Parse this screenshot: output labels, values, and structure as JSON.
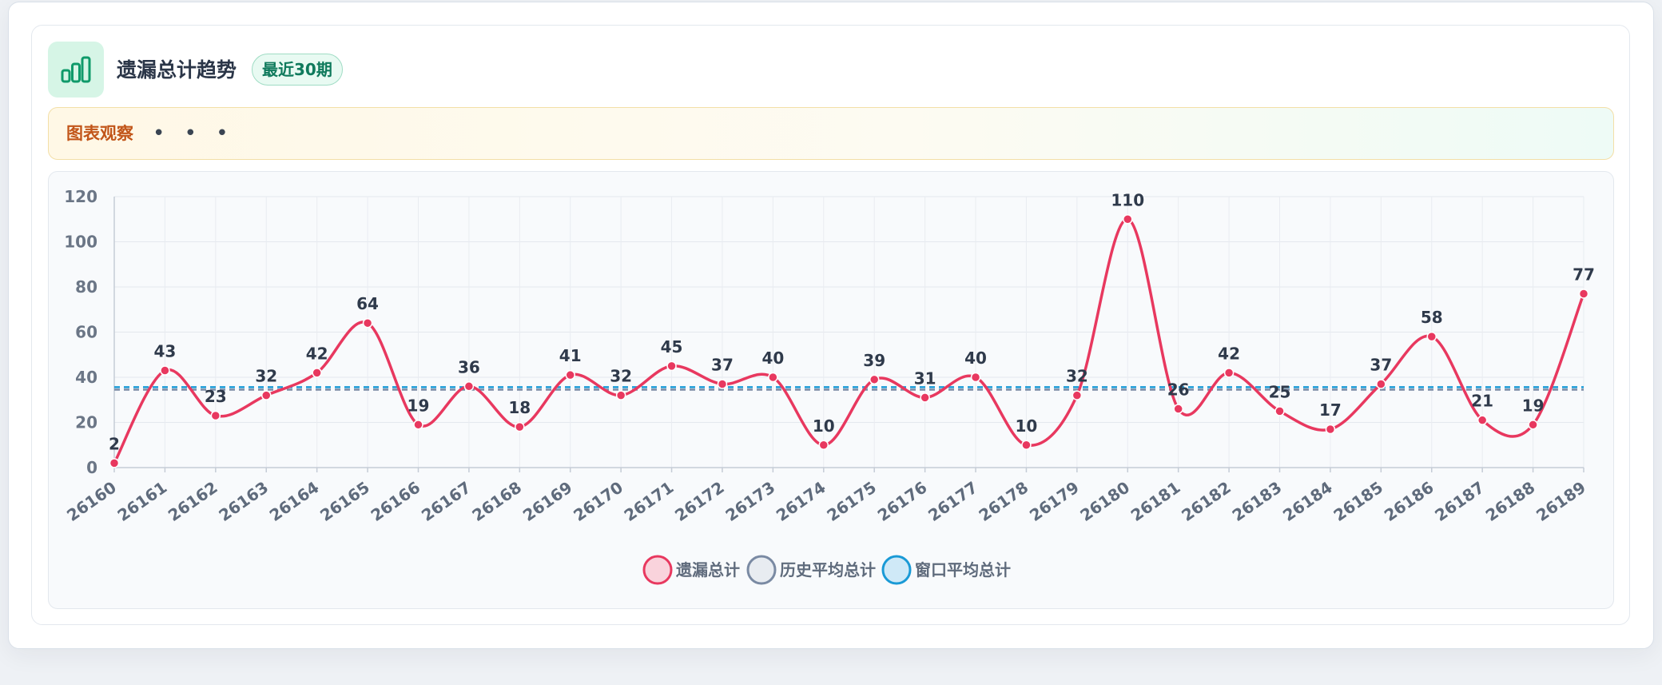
{
  "header": {
    "title": "遗漏总计趋势",
    "badge": "最近30期",
    "icon": "bar-chart-icon"
  },
  "notice": {
    "label": "图表观察",
    "dots": "• • •"
  },
  "colors": {
    "series_main": "#e8385f",
    "history_avg": "#7a8aa3",
    "window_avg": "#1a9ad6",
    "accent": "#0f9a6a"
  },
  "chart_data": {
    "type": "line",
    "x": [
      "26160",
      "26161",
      "26162",
      "26163",
      "26164",
      "26165",
      "26166",
      "26167",
      "26168",
      "26169",
      "26170",
      "26171",
      "26172",
      "26173",
      "26174",
      "26175",
      "26176",
      "26177",
      "26178",
      "26179",
      "26180",
      "26181",
      "26182",
      "26183",
      "26184",
      "26185",
      "26186",
      "26187",
      "26188",
      "26189"
    ],
    "series": [
      {
        "name": "遗漏总计",
        "values": [
          2,
          43,
          23,
          32,
          42,
          64,
          19,
          36,
          18,
          41,
          32,
          45,
          37,
          40,
          10,
          39,
          31,
          40,
          10,
          32,
          110,
          26,
          42,
          25,
          17,
          37,
          58,
          21,
          19,
          77
        ]
      },
      {
        "name": "历史平均总计",
        "value": 34.5
      },
      {
        "name": "窗口平均总计",
        "value": 35.6
      }
    ],
    "ylim": [
      0,
      120
    ],
    "yticks": [
      0,
      20,
      40,
      60,
      80,
      100,
      120
    ],
    "grid": true,
    "legend_position": "bottom-center",
    "data_labels": true
  }
}
